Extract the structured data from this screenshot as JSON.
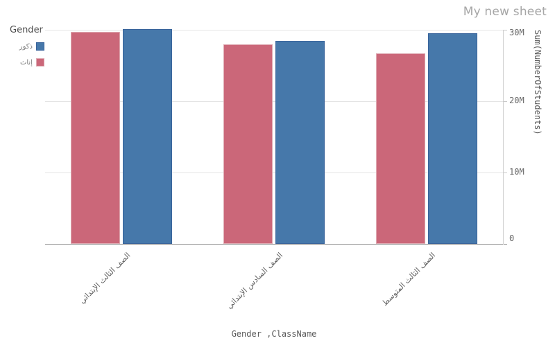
{
  "sheet_title": "My new sheet",
  "legend": {
    "title": "Gender",
    "items": [
      {
        "label": "ذكور",
        "color": "#4678aa",
        "border": "#38639b"
      },
      {
        "label": "إناث",
        "color": "#cb6779",
        "border": "#deaab2"
      }
    ]
  },
  "chart_data": {
    "type": "bar",
    "title": "",
    "categories": [
      "الصف الثالث الإبتدائي",
      "الصف السادس الإبتدائي",
      "الصف الثالث المتوسط"
    ],
    "series": [
      {
        "name": "إناث",
        "color": "#cb6779",
        "border": "#deaab2",
        "values": [
          29700000,
          28000000,
          26700000
        ]
      },
      {
        "name": "ذكور",
        "color": "#4678aa",
        "border": "#38639b",
        "values": [
          30100000,
          28400000,
          29500000
        ]
      }
    ],
    "xlabel": "Gender ,ClassName",
    "ylabel": "Sum(NumberOfStudents)",
    "y_ticks": [
      {
        "label": "0",
        "value": 0
      },
      {
        "label": "10M",
        "value": 10000000
      },
      {
        "label": "20M",
        "value": 20000000
      },
      {
        "label": "30M",
        "value": 30000000
      }
    ],
    "ylim": [
      0,
      30000000
    ],
    "grid": true,
    "legend_position": "top-left",
    "yaxis_side": "right"
  }
}
